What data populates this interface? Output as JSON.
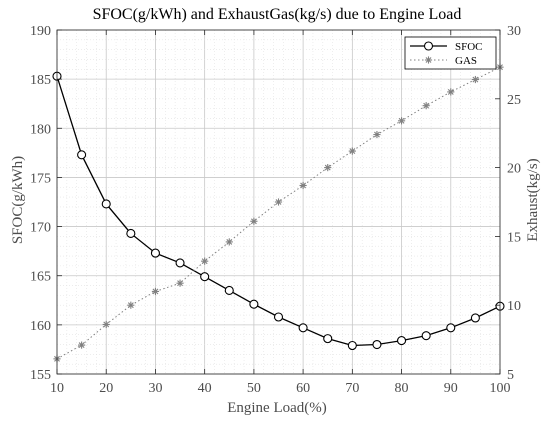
{
  "chart_data": {
    "type": "line",
    "title": "SFOC(g/kWh) and ExhaustGas(kg/s) due to Engine Load",
    "xlabel": "Engine Load(%)",
    "ylabel_left": "SFOC(g/kWh)",
    "ylabel_right": "Exhaust(kg/s)",
    "xlim": [
      10,
      100
    ],
    "ylim_left": [
      155,
      190
    ],
    "ylim_right": [
      5,
      30
    ],
    "x_ticks": [
      "10",
      "20",
      "30",
      "40",
      "50",
      "60",
      "70",
      "80",
      "90",
      "100"
    ],
    "y_left_ticks": [
      "155",
      "160",
      "165",
      "170",
      "175",
      "180",
      "185",
      "190"
    ],
    "y_right_ticks": [
      "5",
      "10",
      "15",
      "20",
      "25",
      "30"
    ],
    "grid": true,
    "legend_position": "top-right",
    "x": [
      10,
      15,
      20,
      25,
      30,
      35,
      40,
      45,
      50,
      55,
      60,
      65,
      70,
      75,
      80,
      85,
      90,
      95,
      100
    ],
    "series": [
      {
        "name": "SFOC",
        "axis": "left",
        "color": "#000000",
        "marker": "circle",
        "line": "solid",
        "values": [
          185.3,
          177.3,
          172.3,
          169.3,
          167.3,
          166.3,
          164.9,
          163.5,
          162.1,
          160.8,
          159.7,
          158.6,
          157.9,
          158.0,
          158.4,
          158.9,
          159.7,
          160.7,
          161.9
        ]
      },
      {
        "name": "GAS",
        "axis": "right",
        "color": "#808080",
        "marker": "asterisk",
        "line": "dotted",
        "values": [
          6.1,
          7.1,
          8.6,
          10.0,
          11.0,
          11.6,
          13.2,
          14.6,
          16.1,
          17.5,
          18.7,
          20.0,
          21.2,
          22.4,
          23.4,
          24.5,
          25.5,
          26.4,
          27.3
        ]
      }
    ]
  }
}
